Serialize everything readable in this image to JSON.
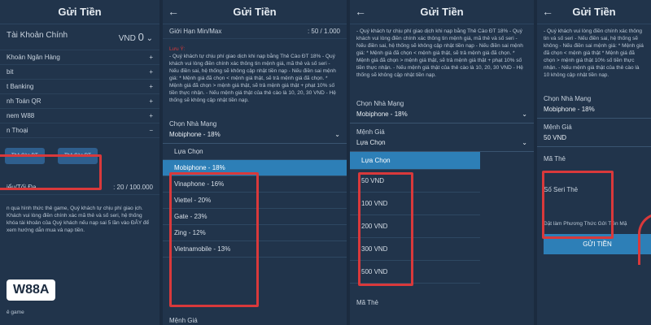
{
  "title": "Gửi Tiền",
  "p1": {
    "account": "Tài Khoản Chính",
    "vnd": "VND",
    "balance": "0",
    "menu": [
      "Khoản Ngân Hàng",
      "bit",
      "t Banking",
      "nh Toán QR",
      "nem W88",
      "n Thoại"
    ],
    "cards": [
      "Thẻ Cào ĐT",
      "Thẻ Cào ĐT"
    ],
    "limit_label": "iểu/Tối Đa",
    "limit_value": ": 20 / 100.000",
    "note": "n qua hình thức thẻ game, Quý khách tự chịu phí giao ịch. Khách vui lòng điền chính xác mã thẻ và số seri, hệ thống khóa tài khoản của Quý khách nếu nạp sai 5 lần vào ĐÂY để xem hướng dẫn mua và nạp tiền.",
    "footer": "ẻ game",
    "logo": "W88A"
  },
  "p2": {
    "limit_label": "Giới Hạn Min/Max",
    "limit_value": ": 50 / 1.000",
    "notice_title": "Lưu Ý:",
    "notice": "- Quý khách tự chịu phí giao dịch khi nạp bằng Thẻ Cào ĐT 18% - Quý khách vui lòng điền chính xác thông tin mệnh giá, mã thẻ và số seri - Nếu điền sai, hệ thống sẽ không cập nhật tiền nạp - Nếu điền sai mệnh giá: * Mệnh giá đã chọn < mệnh giá thật, sẽ trả mệnh giá đã chọn. * Mệnh giá đã chọn > mệnh giá thật, sẽ trả mệnh giá thật + phạt 10% số tiền thực nhận. - Nếu mệnh giá thật của thẻ cào là 10, 20, 30 VND - Hệ thống sẽ không cập nhật tiền nạp.",
    "network_label": "Chọn Nhà Mạng",
    "network_value": "Mobiphone - 18%",
    "options": [
      "Lựa Chọn",
      "Mobiphone - 18%",
      "Vinaphone - 16%",
      "Viettel - 20%",
      "Gate - 23%",
      "Zing - 12%",
      "Vietnamobile - 13%"
    ],
    "selected": 1,
    "next_label": "Mệnh Giá"
  },
  "p3": {
    "notice": "- Quý khách tự chịu phí giao dịch khi nạp bằng Thẻ Cào ĐT 18% - Quý khách vui lòng điền chính xác thông tin mệnh giá, mã thẻ và số seri - Nếu điền sai, hệ thống sẽ không cập nhật tiền nạp - Nếu điền sai mệnh giá: * Mệnh giá đã chọn < mệnh giá thật, sẽ trả mệnh giá đã chọn. * Mệnh giá đã chọn > mệnh giá thật, sẽ trả mệnh giá thật + phạt 10% số tiền thực nhận. - Nếu mệnh giá thật của thẻ cào là 10, 20, 30 VND - Hệ thống sẽ không cập nhật tiền nạp.",
    "network_label": "Chọn Nhà Mạng",
    "network_value": "Mobiphone - 18%",
    "amount_label": "Mệnh Giá",
    "amount_value": "Lựa Chọn",
    "options": [
      "Lựa Chọn",
      "50 VND",
      "100 VND",
      "200 VND",
      "300 VND",
      "500 VND"
    ],
    "selected": 0,
    "code_label": "Mã Thẻ"
  },
  "p4": {
    "notice": "- Quý khách vui lòng điền chính xác thông tin và số seri - Nếu điền sai, hệ thống sẽ không - Nếu điền sai mệnh giá: * Mệnh giá đã chọn < mệnh giá thật * Mệnh giá đã chọn > mệnh giá thật 10% số tiền thực nhận. - Nếu mệnh giá thật của thẻ cào là 10 không cập nhật tiền nạp.",
    "network_label": "Chọn Nhà Mạng",
    "network_value": "Mobiphone - 18%",
    "amount_label": "Mệnh Giá",
    "amount_value": "50 VND",
    "code_label": "Mã Thẻ",
    "serial_label": "Số Seri Thẻ",
    "default_label": "Đặt làm Phương Thức Gửi Tiền Mặ",
    "submit": "GỬI TIỀN"
  },
  "colors": {
    "accent": "#2d7fb7",
    "highlight": "#d9393b"
  }
}
